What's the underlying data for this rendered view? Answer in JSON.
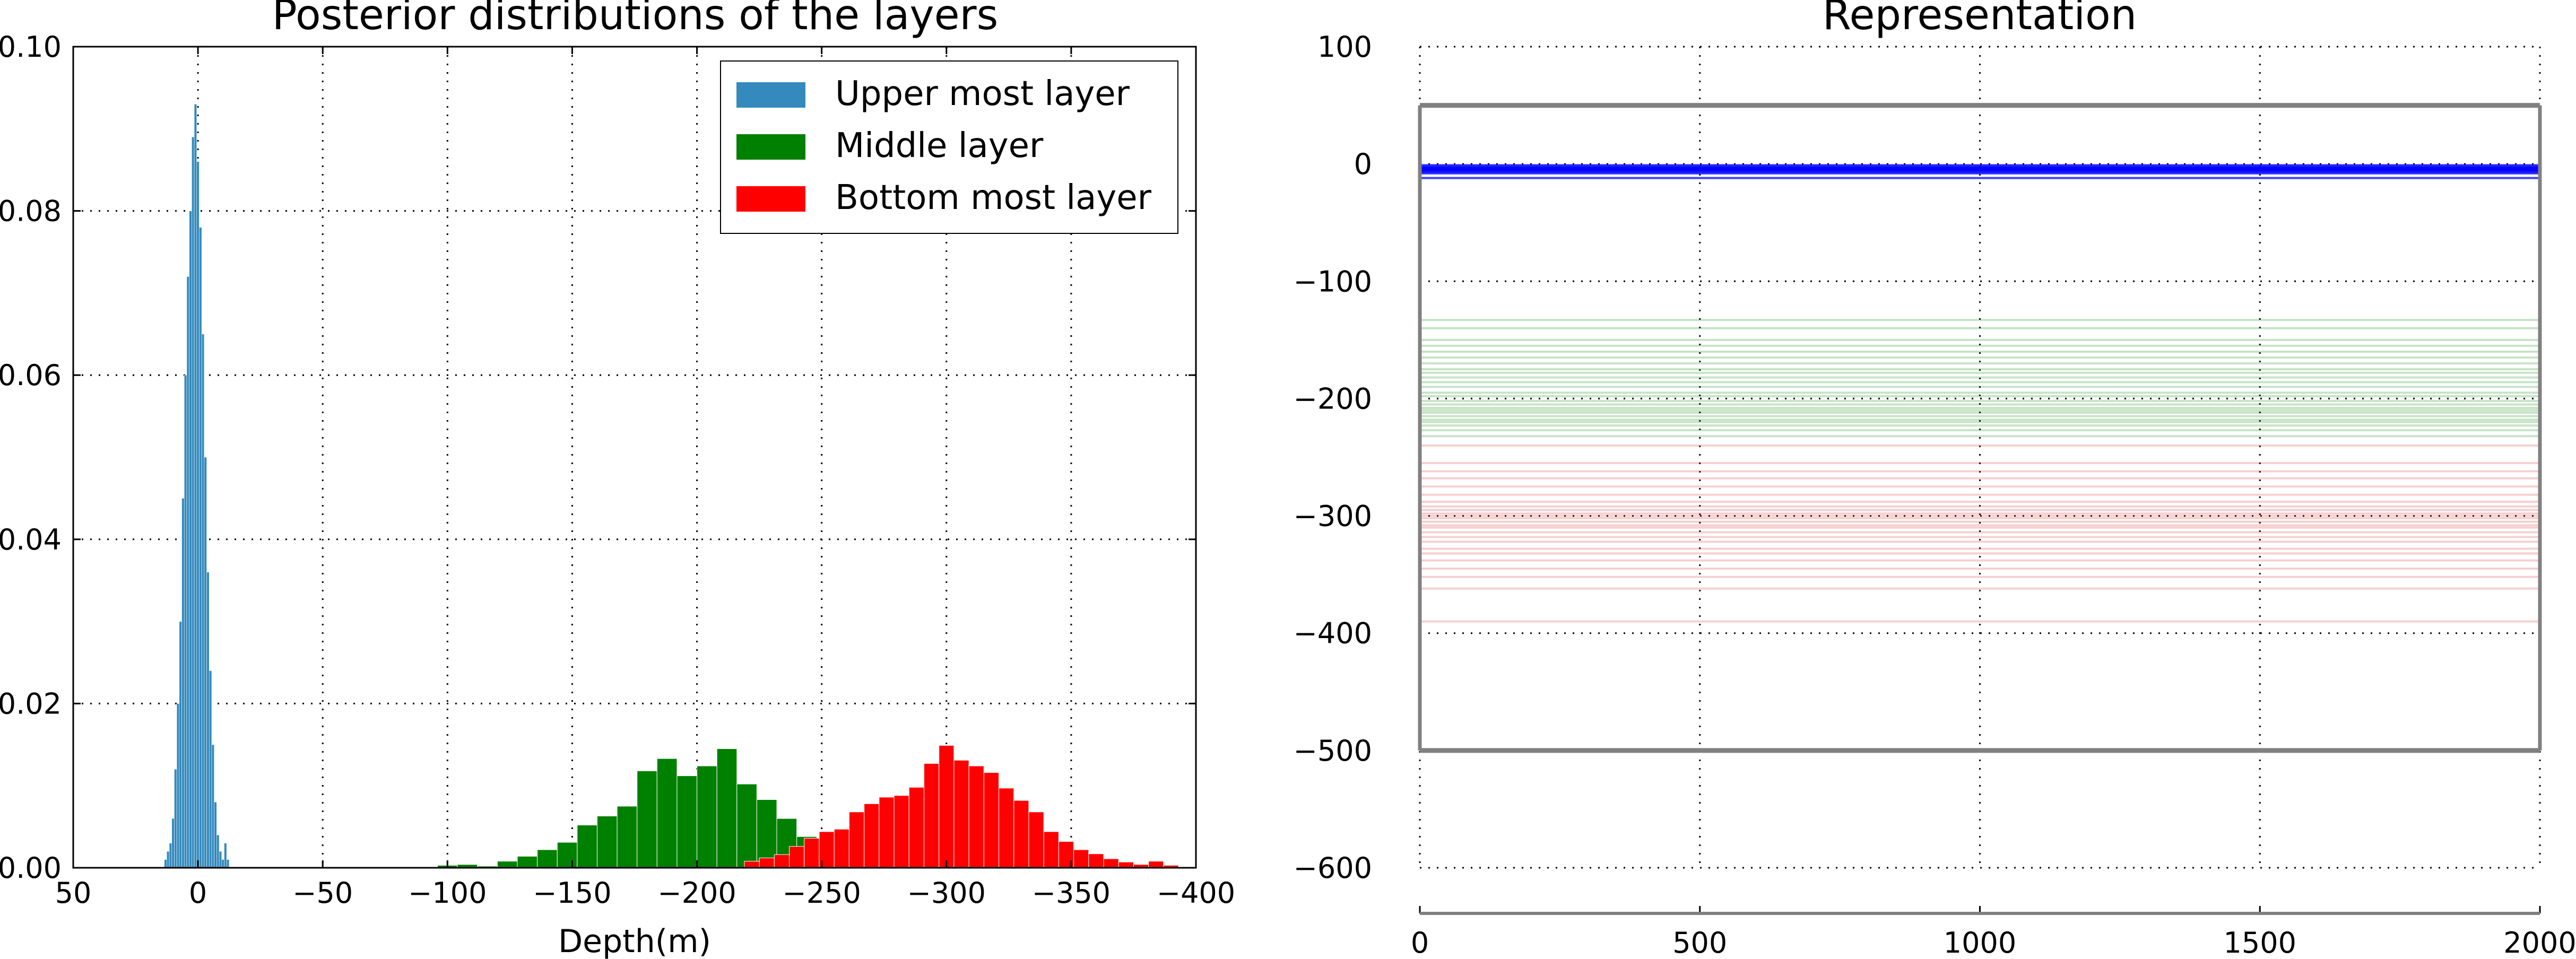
{
  "chart_data": [
    {
      "type": "histogram",
      "title": "Posterior distributions of the layers",
      "xlabel": "Depth(m)",
      "ylabel": "",
      "xlim": [
        50,
        -400
      ],
      "ylim": [
        0,
        0.1
      ],
      "xticks": [
        50,
        0,
        -50,
        -100,
        -150,
        -200,
        -250,
        -300,
        -350,
        -400
      ],
      "xtick_labels": [
        "50",
        "0",
        "−50",
        "−100",
        "−150",
        "−200",
        "−250",
        "−300",
        "−350",
        "−400"
      ],
      "yticks": [
        0,
        0.02,
        0.04,
        0.06,
        0.08,
        0.1
      ],
      "ytick_labels": [
        "0.00",
        "0.02",
        "0.04",
        "0.06",
        "0.08",
        "0.10"
      ],
      "grid": true,
      "legend": {
        "position": "top-right",
        "entries": [
          {
            "label": "Upper most layer",
            "color": "#348abd"
          },
          {
            "label": "Middle layer",
            "color": "#008000"
          },
          {
            "label": "Bottom most layer",
            "color": "#ff0000"
          }
        ]
      },
      "series": [
        {
          "name": "Upper most layer",
          "color": "#348abd",
          "bin_width": 1,
          "bins": [
            {
              "x": 13,
              "y": 0.001
            },
            {
              "x": 12,
              "y": 0.002
            },
            {
              "x": 11,
              "y": 0.003
            },
            {
              "x": 10,
              "y": 0.006
            },
            {
              "x": 9,
              "y": 0.012
            },
            {
              "x": 8,
              "y": 0.02
            },
            {
              "x": 7,
              "y": 0.03
            },
            {
              "x": 6,
              "y": 0.045
            },
            {
              "x": 5,
              "y": 0.06
            },
            {
              "x": 4,
              "y": 0.072
            },
            {
              "x": 3,
              "y": 0.08
            },
            {
              "x": 2,
              "y": 0.089
            },
            {
              "x": 1,
              "y": 0.093
            },
            {
              "x": 0,
              "y": 0.086
            },
            {
              "x": -1,
              "y": 0.078
            },
            {
              "x": -2,
              "y": 0.065
            },
            {
              "x": -3,
              "y": 0.05
            },
            {
              "x": -4,
              "y": 0.036
            },
            {
              "x": -5,
              "y": 0.024
            },
            {
              "x": -6,
              "y": 0.015
            },
            {
              "x": -7,
              "y": 0.008
            },
            {
              "x": -8,
              "y": 0.004
            },
            {
              "x": -9,
              "y": 0.002
            },
            {
              "x": -10,
              "y": 0.001
            },
            {
              "x": -11,
              "y": 0.003
            },
            {
              "x": -12,
              "y": 0.001
            }
          ]
        },
        {
          "name": "Middle layer",
          "color": "#008000",
          "bin_width": 8,
          "bins": [
            {
              "x": -100,
              "y": 0.0003
            },
            {
              "x": -108,
              "y": 0.0004
            },
            {
              "x": -116,
              "y": 0.0002
            },
            {
              "x": -124,
              "y": 0.0008
            },
            {
              "x": -132,
              "y": 0.0014
            },
            {
              "x": -140,
              "y": 0.0022
            },
            {
              "x": -148,
              "y": 0.0031
            },
            {
              "x": -156,
              "y": 0.0052
            },
            {
              "x": -164,
              "y": 0.0063
            },
            {
              "x": -172,
              "y": 0.0075
            },
            {
              "x": -180,
              "y": 0.0118
            },
            {
              "x": -188,
              "y": 0.0133
            },
            {
              "x": -196,
              "y": 0.0112
            },
            {
              "x": -204,
              "y": 0.0124
            },
            {
              "x": -212,
              "y": 0.0145
            },
            {
              "x": -220,
              "y": 0.0102
            },
            {
              "x": -228,
              "y": 0.0083
            },
            {
              "x": -236,
              "y": 0.006
            },
            {
              "x": -244,
              "y": 0.0038
            },
            {
              "x": -252,
              "y": 0.0016
            }
          ]
        },
        {
          "name": "Bottom most layer",
          "color": "#ff0000",
          "bin_width": 6,
          "bins": [
            {
              "x": -222,
              "y": 0.0008
            },
            {
              "x": -228,
              "y": 0.0012
            },
            {
              "x": -234,
              "y": 0.0016
            },
            {
              "x": -240,
              "y": 0.0026
            },
            {
              "x": -246,
              "y": 0.0036
            },
            {
              "x": -252,
              "y": 0.0044
            },
            {
              "x": -258,
              "y": 0.0047
            },
            {
              "x": -264,
              "y": 0.0068
            },
            {
              "x": -270,
              "y": 0.0078
            },
            {
              "x": -276,
              "y": 0.0086
            },
            {
              "x": -282,
              "y": 0.0088
            },
            {
              "x": -288,
              "y": 0.0098
            },
            {
              "x": -294,
              "y": 0.0127
            },
            {
              "x": -300,
              "y": 0.0149
            },
            {
              "x": -306,
              "y": 0.0131
            },
            {
              "x": -312,
              "y": 0.0124
            },
            {
              "x": -318,
              "y": 0.0116
            },
            {
              "x": -324,
              "y": 0.0097
            },
            {
              "x": -330,
              "y": 0.0082
            },
            {
              "x": -336,
              "y": 0.0068
            },
            {
              "x": -342,
              "y": 0.0044
            },
            {
              "x": -348,
              "y": 0.0032
            },
            {
              "x": -354,
              "y": 0.0022
            },
            {
              "x": -360,
              "y": 0.0017
            },
            {
              "x": -366,
              "y": 0.0011
            },
            {
              "x": -372,
              "y": 0.0007
            },
            {
              "x": -378,
              "y": 0.0004
            },
            {
              "x": -384,
              "y": 0.0008
            },
            {
              "x": -390,
              "y": 0.0003
            }
          ]
        }
      ]
    },
    {
      "type": "line",
      "title": "Representation",
      "xlabel": "",
      "ylabel": "",
      "xlim": [
        0,
        2000
      ],
      "ylim": [
        -600,
        100
      ],
      "xticks": [
        0,
        500,
        1000,
        1500,
        2000
      ],
      "xtick_labels": [
        "0",
        "500",
        "1000",
        "1500",
        "2000"
      ],
      "yticks": [
        100,
        0,
        -100,
        -200,
        -300,
        -400,
        -500,
        -600
      ],
      "ytick_labels": [
        "100",
        "0",
        "−100",
        "−200",
        "−300",
        "−400",
        "−500",
        "−600"
      ],
      "grid": true,
      "boundaries": [
        {
          "color": "#808080",
          "depth": 50
        },
        {
          "color": "#808080",
          "depth": -500
        }
      ],
      "series": [
        {
          "name": "Upper most layer",
          "color": "#0000ff",
          "depths": [
            -1,
            -2,
            -3,
            -3.5,
            -4,
            -4.5,
            -5,
            -5.5,
            -6,
            -7,
            -8,
            -12
          ]
        },
        {
          "name": "Middle layer",
          "color": "#008000",
          "depths": [
            -133,
            -140,
            -150,
            -155,
            -160,
            -165,
            -170,
            -175,
            -178,
            -182,
            -186,
            -190,
            -195,
            -198,
            -202,
            -205,
            -208,
            -210,
            -212,
            -215,
            -218,
            -220,
            -223,
            -227,
            -232
          ]
        },
        {
          "name": "Bottom most layer",
          "color": "#d62728",
          "depths": [
            -240,
            -255,
            -262,
            -268,
            -275,
            -282,
            -288,
            -292,
            -295,
            -298,
            -300,
            -302,
            -305,
            -308,
            -310,
            -314,
            -318,
            -322,
            -328,
            -332,
            -338,
            -345,
            -352,
            -362,
            -390
          ]
        }
      ]
    }
  ]
}
